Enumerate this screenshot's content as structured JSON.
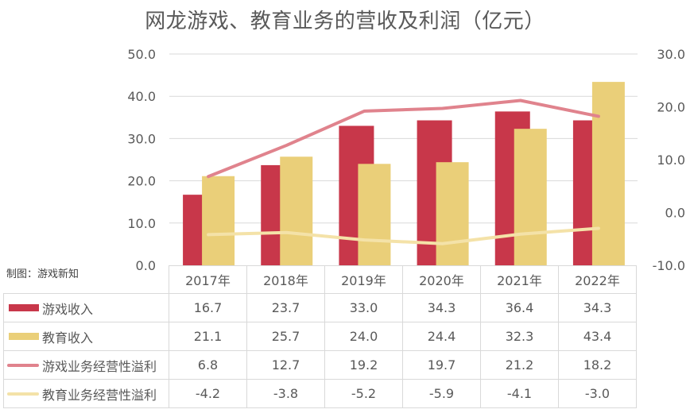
{
  "title": "网龙游戏、教育业务的营收及利润（亿元）",
  "credit": "制图：游戏新知",
  "colors": {
    "game_revenue": "#c8374a",
    "edu_revenue": "#eacf79",
    "game_margin": "#e0838d",
    "edu_margin": "#f4e2a8",
    "grid": "#d9d9d9"
  },
  "chart_data": {
    "type": "bar",
    "title": "网龙游戏、教育业务的营收及利润（亿元）",
    "categories": [
      "2017年",
      "2018年",
      "2019年",
      "2020年",
      "2021年",
      "2022年"
    ],
    "series": [
      {
        "name": "游戏收入",
        "type": "bar",
        "axis": "left",
        "values": [
          16.7,
          23.7,
          33.0,
          34.3,
          36.4,
          34.3
        ]
      },
      {
        "name": "教育收入",
        "type": "bar",
        "axis": "left",
        "values": [
          21.1,
          25.7,
          24.0,
          24.4,
          32.3,
          43.4
        ]
      },
      {
        "name": "游戏业务经营性溢利",
        "type": "line",
        "axis": "right",
        "values": [
          6.8,
          12.7,
          19.2,
          19.7,
          21.2,
          18.2
        ]
      },
      {
        "name": "教育业务经营性溢利",
        "type": "line",
        "axis": "right",
        "values": [
          -4.2,
          -3.8,
          -5.2,
          -5.9,
          -4.1,
          -3.0
        ]
      }
    ],
    "left_axis": {
      "ylim": [
        0,
        50
      ],
      "ticks": [
        "0.0",
        "10.0",
        "20.0",
        "30.0",
        "40.0",
        "50.0"
      ]
    },
    "right_axis": {
      "ylim": [
        -10,
        30
      ],
      "ticks": [
        "-10.0",
        "0.0",
        "10.0",
        "20.0",
        "30.0"
      ]
    },
    "xlabel": "",
    "ylabel": "",
    "grid": true,
    "legend": "data-table-bottom"
  }
}
